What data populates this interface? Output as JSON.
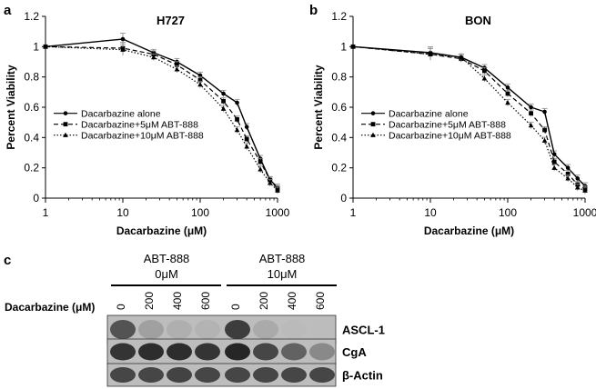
{
  "panel_a_letter": "a",
  "panel_b_letter": "b",
  "panel_c_letter": "c",
  "chart_data": [
    {
      "type": "line",
      "title": "H727",
      "xlabel": "Dacarbazine (μM)",
      "ylabel": "Percent Viability",
      "x_scale": "log",
      "xlim": [
        1,
        1000
      ],
      "ylim": [
        0,
        1.2
      ],
      "x_ticks": [
        "1",
        "10",
        "100",
        "1000"
      ],
      "y_ticks": [
        "0",
        "0.2",
        "0.4",
        "0.6",
        "0.8",
        "1",
        "1.2"
      ],
      "grid": false,
      "legend_position": "bottom-left",
      "series": [
        {
          "name": "Dacarbazine alone",
          "marker": "circle",
          "line": "solid",
          "x": [
            1,
            10,
            25,
            50,
            100,
            200,
            300,
            400,
            600,
            800,
            1000
          ],
          "y": [
            1.0,
            1.05,
            0.96,
            0.9,
            0.81,
            0.69,
            0.63,
            0.47,
            0.26,
            0.12,
            0.07
          ]
        },
        {
          "name": "Dacarbazine+5μM ABT-888",
          "marker": "square",
          "line": "dashed",
          "x": [
            1,
            10,
            25,
            50,
            100,
            200,
            300,
            400,
            600,
            800,
            1000
          ],
          "y": [
            1.0,
            0.99,
            0.95,
            0.88,
            0.78,
            0.64,
            0.52,
            0.39,
            0.24,
            0.12,
            0.06
          ]
        },
        {
          "name": "Dacarbazine+10μM ABT-888",
          "marker": "triangle",
          "line": "dotted",
          "x": [
            1,
            10,
            25,
            50,
            100,
            200,
            300,
            400,
            600,
            800,
            1000
          ],
          "y": [
            1.0,
            0.98,
            0.93,
            0.85,
            0.75,
            0.59,
            0.45,
            0.34,
            0.19,
            0.1,
            0.05
          ]
        }
      ]
    },
    {
      "type": "line",
      "title": "BON",
      "xlabel": "Dacarbazine (μM)",
      "ylabel": "Percent Viability",
      "x_scale": "log",
      "xlim": [
        1,
        1000
      ],
      "ylim": [
        0,
        1.2
      ],
      "x_ticks": [
        "1",
        "10",
        "100",
        "1000"
      ],
      "y_ticks": [
        "0",
        "0.2",
        "0.4",
        "0.6",
        "0.8",
        "1",
        "1.2"
      ],
      "grid": false,
      "legend_position": "bottom-left",
      "series": [
        {
          "name": "Dacarbazine alone",
          "marker": "circle",
          "line": "solid",
          "x": [
            1,
            10,
            25,
            50,
            100,
            200,
            300,
            400,
            600,
            800,
            1000
          ],
          "y": [
            1.0,
            0.96,
            0.93,
            0.86,
            0.73,
            0.6,
            0.57,
            0.29,
            0.2,
            0.13,
            0.08
          ]
        },
        {
          "name": "Dacarbazine+5μM ABT-888",
          "marker": "square",
          "line": "dashed",
          "x": [
            1,
            10,
            25,
            50,
            100,
            200,
            300,
            400,
            600,
            800,
            1000
          ],
          "y": [
            1.0,
            0.95,
            0.92,
            0.84,
            0.69,
            0.56,
            0.45,
            0.24,
            0.16,
            0.09,
            0.06
          ]
        },
        {
          "name": "Dacarbazine+10μM ABT-888",
          "marker": "triangle",
          "line": "dotted",
          "x": [
            1,
            10,
            25,
            50,
            100,
            200,
            300,
            400,
            600,
            800,
            1000
          ],
          "y": [
            1.0,
            0.95,
            0.93,
            0.79,
            0.63,
            0.48,
            0.38,
            0.2,
            0.13,
            0.07,
            0.05
          ]
        }
      ]
    }
  ],
  "western_blot": {
    "groups": [
      {
        "line1": "ABT-888",
        "line2": "0μM"
      },
      {
        "line1": "ABT-888",
        "line2": "10μM"
      }
    ],
    "dose_label": "Dacarbazine (μM)",
    "doses": [
      "0",
      "200",
      "400",
      "600",
      "0",
      "200",
      "400",
      "600"
    ],
    "bands": [
      {
        "name": "ASCL-1",
        "intensities": [
          0.78,
          0.42,
          0.3,
          0.25,
          0.85,
          0.35,
          0.12,
          0.08
        ]
      },
      {
        "name": "CgA",
        "intensities": [
          0.88,
          0.9,
          0.9,
          0.88,
          0.92,
          0.82,
          0.72,
          0.55
        ]
      },
      {
        "name": "β-Actin",
        "intensities": [
          0.82,
          0.82,
          0.83,
          0.82,
          0.82,
          0.82,
          0.82,
          0.82
        ]
      }
    ]
  }
}
